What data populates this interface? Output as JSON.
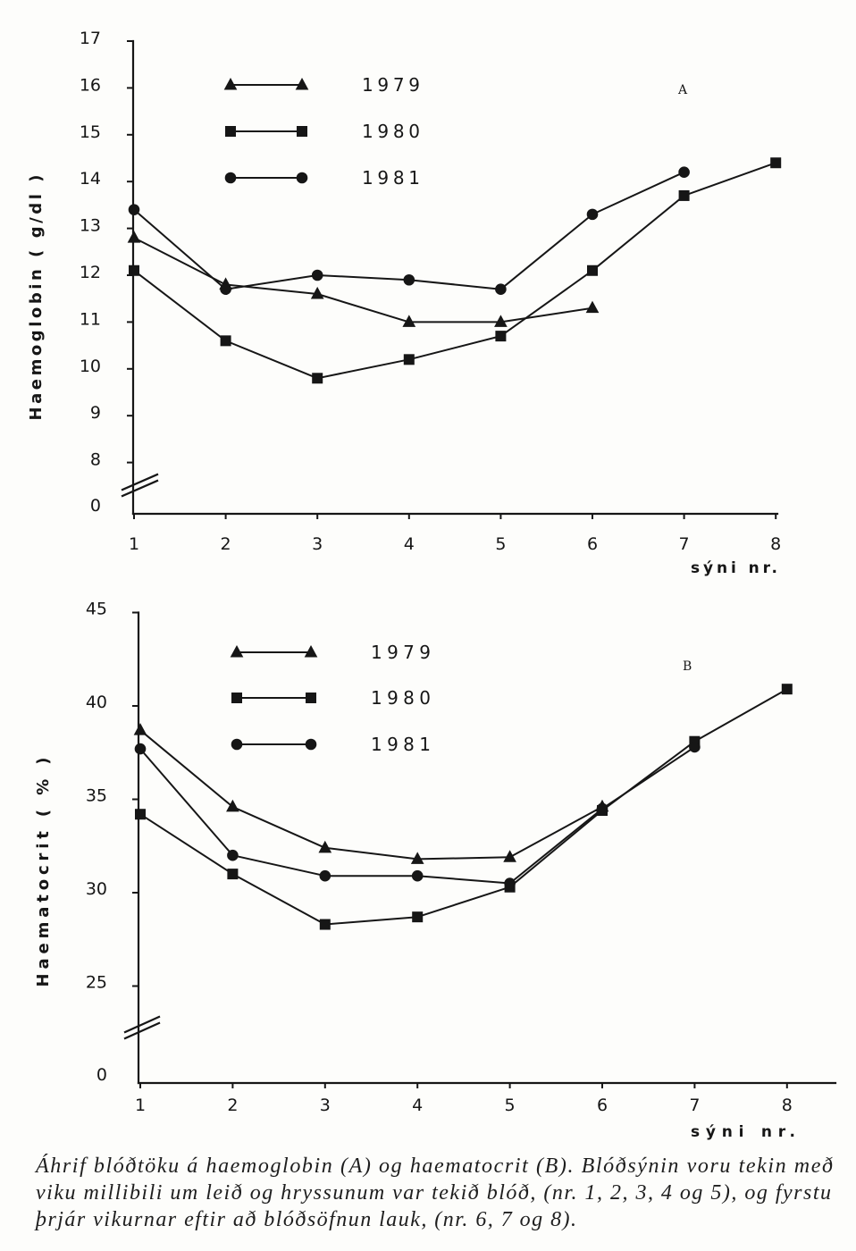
{
  "colors": {
    "ink": "#161616",
    "paper": "#fdfdfb"
  },
  "figure": {
    "caption_lines": [
      "Áhrif blóðtöku á haemoglobin (A) og haematocrit (B). Blóðsýnin voru tekin með",
      "viku millibili um leið og hryssunum var tekið blóð, (nr. 1, 2, 3, 4 og 5), og fyrstu",
      "þrjár vikurnar eftir að blóðsöfnun lauk, (nr. 6, 7 og 8)."
    ]
  },
  "chart_data": [
    {
      "panel": "A",
      "type": "line",
      "ylabel": "Haemoglobin ( g/dl )",
      "xlabel": "sýni nr.",
      "categories": [
        "1",
        "2",
        "3",
        "4",
        "5",
        "6",
        "7",
        "8"
      ],
      "ylim": [
        8,
        17
      ],
      "y_axis_break": true,
      "yticks": [
        17,
        16,
        15,
        14,
        13,
        12,
        11,
        10,
        9,
        8,
        0
      ],
      "legend_position": "top-left",
      "series": [
        {
          "name": "1979",
          "marker": "triangle",
          "values": [
            12.8,
            11.8,
            11.6,
            11.0,
            11.0,
            11.3,
            null,
            null
          ]
        },
        {
          "name": "1980",
          "marker": "square",
          "values": [
            12.1,
            10.6,
            9.8,
            10.2,
            10.7,
            12.1,
            13.7,
            14.4
          ]
        },
        {
          "name": "1981",
          "marker": "circle",
          "values": [
            13.4,
            11.7,
            12.0,
            11.9,
            11.7,
            13.3,
            14.2,
            null
          ]
        }
      ]
    },
    {
      "panel": "B",
      "type": "line",
      "ylabel": "Haematocrit ( % )",
      "xlabel": "sýni nr.",
      "categories": [
        "1",
        "2",
        "3",
        "4",
        "5",
        "6",
        "7",
        "8"
      ],
      "ylim": [
        25,
        45
      ],
      "y_axis_break": true,
      "yticks": [
        45,
        40,
        35,
        30,
        25,
        0
      ],
      "legend_position": "top-left",
      "series": [
        {
          "name": "1979",
          "marker": "triangle",
          "values": [
            38.7,
            34.6,
            32.4,
            31.8,
            31.9,
            34.6,
            null,
            null
          ]
        },
        {
          "name": "1980",
          "marker": "square",
          "values": [
            34.2,
            31.0,
            28.3,
            28.7,
            30.3,
            34.4,
            38.1,
            40.9
          ]
        },
        {
          "name": "1981",
          "marker": "circle",
          "values": [
            37.7,
            32.0,
            30.9,
            30.9,
            30.5,
            34.5,
            37.8,
            null
          ]
        }
      ]
    }
  ]
}
